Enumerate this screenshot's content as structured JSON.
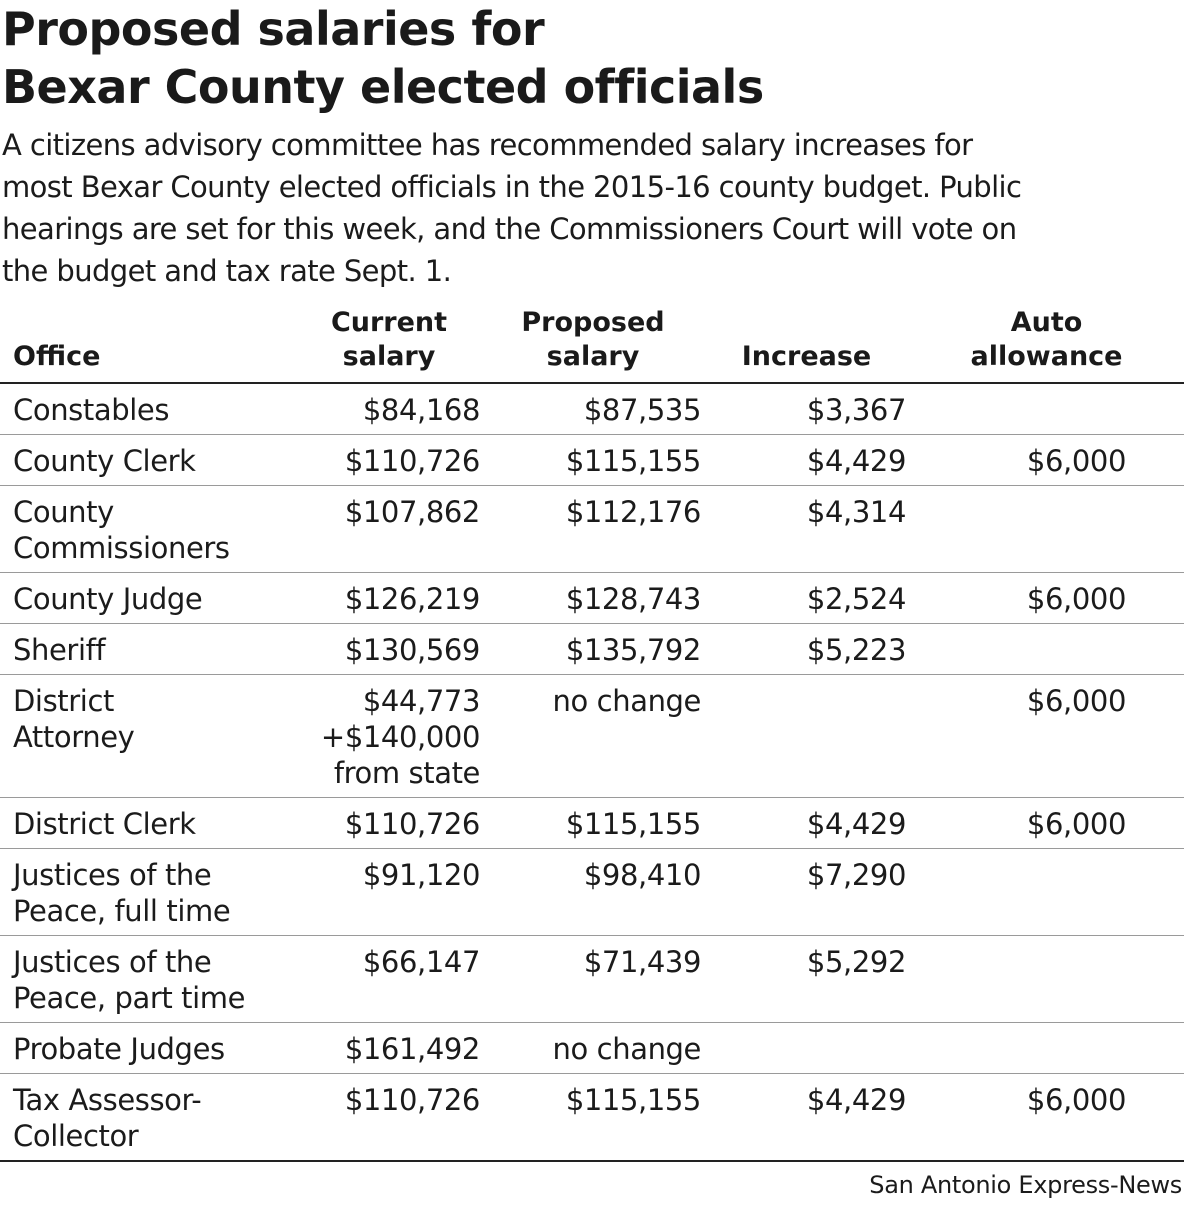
{
  "chart_data": {
    "type": "table",
    "title": [
      "Proposed salaries for",
      "Bexar County elected officials"
    ],
    "subtitle": [
      "A citizens advisory committee has recommended salary increases for",
      "most Bexar County elected officials in the 2015-16 county budget. Public",
      "hearings are set for this week, and the Commissioners Court will vote on",
      "the budget and tax rate Sept. 1."
    ],
    "columns": [
      [
        "Office"
      ],
      [
        "Current",
        "salary"
      ],
      [
        "Proposed",
        "salary"
      ],
      [
        "Increase"
      ],
      [
        "Auto",
        "allowance"
      ]
    ],
    "rows": [
      [
        [
          "Constables"
        ],
        [
          "$84,168"
        ],
        [
          "$87,535"
        ],
        [
          "$3,367"
        ],
        [
          ""
        ]
      ],
      [
        [
          "County Clerk"
        ],
        [
          "$110,726"
        ],
        [
          "$115,155"
        ],
        [
          "$4,429"
        ],
        [
          "$6,000"
        ]
      ],
      [
        [
          "County",
          "Commissioners"
        ],
        [
          "$107,862"
        ],
        [
          "$112,176"
        ],
        [
          "$4,314"
        ],
        [
          ""
        ]
      ],
      [
        [
          "County Judge"
        ],
        [
          "$126,219"
        ],
        [
          "$128,743"
        ],
        [
          "$2,524"
        ],
        [
          "$6,000"
        ]
      ],
      [
        [
          "Sheriff"
        ],
        [
          "$130,569"
        ],
        [
          "$135,792"
        ],
        [
          "$5,223"
        ],
        [
          ""
        ]
      ],
      [
        [
          "District",
          "Attorney"
        ],
        [
          "$44,773",
          "+$140,000",
          "from state"
        ],
        [
          "no change"
        ],
        [
          ""
        ],
        [
          "$6,000"
        ]
      ],
      [
        [
          "District Clerk"
        ],
        [
          "$110,726"
        ],
        [
          "$115,155"
        ],
        [
          "$4,429"
        ],
        [
          "$6,000"
        ]
      ],
      [
        [
          "Justices of the",
          "Peace, full time"
        ],
        [
          "$91,120"
        ],
        [
          "$98,410"
        ],
        [
          "$7,290"
        ],
        [
          ""
        ]
      ],
      [
        [
          "Justices of the",
          "Peace, part time"
        ],
        [
          "$66,147"
        ],
        [
          "$71,439"
        ],
        [
          "$5,292"
        ],
        [
          ""
        ]
      ],
      [
        [
          "Probate Judges"
        ],
        [
          "$161,492"
        ],
        [
          "no change"
        ],
        [
          ""
        ],
        [
          ""
        ]
      ],
      [
        [
          "Tax Assessor-",
          "Collector"
        ],
        [
          "$110,726"
        ],
        [
          "$115,155"
        ],
        [
          "$4,429"
        ],
        [
          "$6,000"
        ]
      ]
    ],
    "source": "San Antonio Express-News"
  }
}
